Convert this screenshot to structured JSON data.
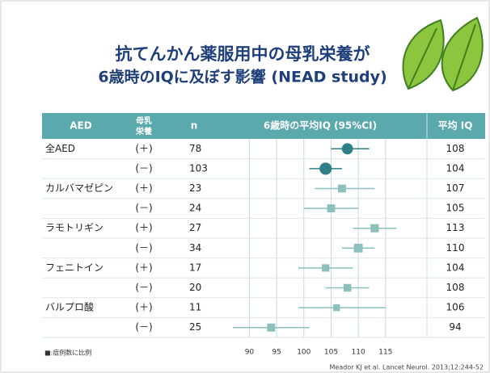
{
  "chart_data": {
    "type": "forest",
    "title": [
      "抗てんかん薬服用中の母乳栄養が",
      "6歳時のIQに及ぼす影響 (NEAD study)"
    ],
    "columns": {
      "aed": "AED",
      "breastfeeding": [
        "母乳",
        "栄養"
      ],
      "n": "n",
      "plot": "6歳時の平均IQ (95%CI)",
      "iq": "平均 IQ"
    },
    "rows": [
      {
        "aed": "全AED",
        "breastfeeding": "(＋)",
        "n": 78,
        "iq": 108,
        "ci": [
          105,
          112
        ],
        "marker": "circle",
        "color": "#2e7f86"
      },
      {
        "aed": null,
        "breastfeeding": "(－)",
        "n": 103,
        "iq": 104,
        "ci": [
          101,
          107
        ],
        "marker": "circle",
        "color": "#2e7f86"
      },
      {
        "aed": "カルバマゼピン",
        "breastfeeding": "(＋)",
        "n": 23,
        "iq": 107,
        "ci": [
          102,
          113
        ],
        "marker": "square",
        "color": "#8cc0bc"
      },
      {
        "aed": null,
        "breastfeeding": "(－)",
        "n": 24,
        "iq": 105,
        "ci": [
          100,
          110
        ],
        "marker": "square",
        "color": "#8cc0bc"
      },
      {
        "aed": "ラモトリギン",
        "breastfeeding": "(＋)",
        "n": 27,
        "iq": 113,
        "ci": [
          109,
          117
        ],
        "marker": "square",
        "color": "#8cc0bc"
      },
      {
        "aed": null,
        "breastfeeding": "(－)",
        "n": 34,
        "iq": 110,
        "ci": [
          107,
          113
        ],
        "marker": "square",
        "color": "#8cc0bc"
      },
      {
        "aed": "フェニトイン",
        "breastfeeding": "(＋)",
        "n": 17,
        "iq": 104,
        "ci": [
          99,
          109
        ],
        "marker": "square",
        "color": "#8cc0bc"
      },
      {
        "aed": null,
        "breastfeeding": "(－)",
        "n": 20,
        "iq": 108,
        "ci": [
          104,
          112
        ],
        "marker": "square",
        "color": "#8cc0bc"
      },
      {
        "aed": "バルプロ酸",
        "breastfeeding": "(＋)",
        "n": 11,
        "iq": 106,
        "ci": [
          99,
          115
        ],
        "marker": "square",
        "color": "#8cc0bc"
      },
      {
        "aed": null,
        "breastfeeding": "(－)",
        "n": 25,
        "iq": 94,
        "ci": [
          87,
          101
        ],
        "marker": "square",
        "color": "#8cc0bc"
      }
    ],
    "xlim": [
      84,
      122
    ],
    "xticks": [
      90,
      95,
      100,
      105,
      110,
      115
    ],
    "footnote": "■:症例数に比例",
    "citation": "Meador KJ et al. Lancet Neurol. 2013;12:244-52",
    "header_color": "#5aa9ad"
  }
}
